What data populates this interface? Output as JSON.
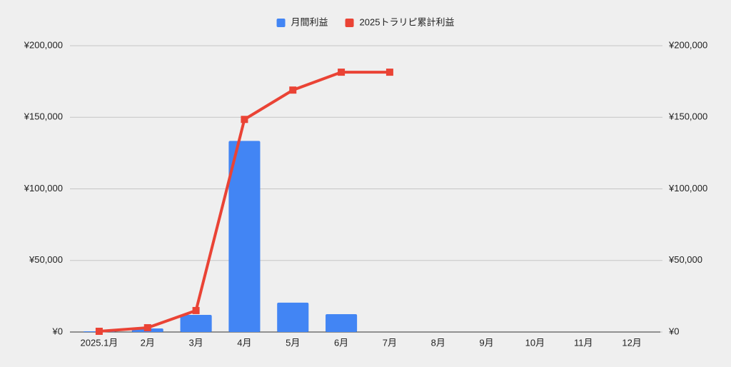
{
  "chart_data": {
    "type": "bar-line",
    "categories": [
      "2025.1月",
      "2月",
      "3月",
      "4月",
      "5月",
      "6月",
      "7月",
      "8月",
      "9月",
      "10月",
      "11月",
      "12月"
    ],
    "series": [
      {
        "name": "月間利益",
        "type": "bar",
        "color": "#4285f4",
        "values": [
          500,
          2500,
          12000,
          133500,
          20500,
          12500,
          0,
          null,
          null,
          null,
          null,
          null
        ]
      },
      {
        "name": "2025トラリピ累計利益",
        "type": "line",
        "axis": "y2",
        "color": "#ea4335",
        "values": [
          500,
          3000,
          15000,
          148500,
          169000,
          181500,
          181500,
          null,
          null,
          null,
          null,
          null
        ]
      }
    ],
    "ylim": [
      0,
      200000
    ],
    "yticks": [
      {
        "value": 0,
        "label": "¥0"
      },
      {
        "value": 50000,
        "label": "¥50,000"
      },
      {
        "value": 100000,
        "label": "¥100,000"
      },
      {
        "value": 150000,
        "label": "¥150,000"
      },
      {
        "value": 200000,
        "label": "¥200,000"
      }
    ],
    "y2lim": [
      0,
      200000
    ],
    "y2ticks": [
      {
        "value": 0,
        "label": "¥0"
      },
      {
        "value": 50000,
        "label": "¥50,000"
      },
      {
        "value": 100000,
        "label": "¥100,000"
      },
      {
        "value": 150000,
        "label": "¥150,000"
      },
      {
        "value": 200000,
        "label": "¥200,000"
      }
    ],
    "grid": true,
    "legend": "top"
  }
}
